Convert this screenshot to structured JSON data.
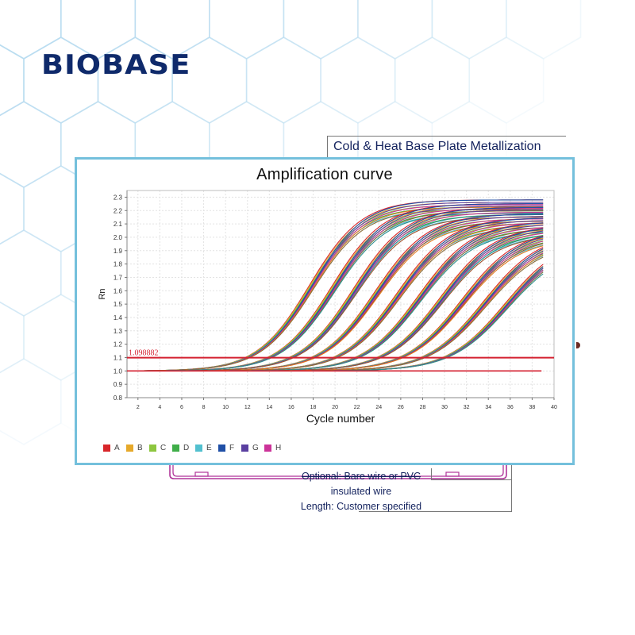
{
  "brand": {
    "name": "BIOBASE",
    "color": "#0f2a6b"
  },
  "background": {
    "hex_pattern_color": "#b9dcf0",
    "callout_top": "Cold & Heat Base Plate Metallization",
    "callout_bottom_lines": [
      "Optional: Bare wire or PVC",
      "insulated wire",
      "Length: Customer specified"
    ],
    "diagram_color": "#b0359a"
  },
  "card": {
    "border_color": "#74c0dc"
  },
  "chart_data": {
    "type": "line",
    "title": "Amplification curve",
    "xlabel": "Cycle number",
    "ylabel": "Rn",
    "xlim": [
      1,
      40
    ],
    "ylim": [
      0.8,
      2.35
    ],
    "x_ticks": [
      2,
      4,
      6,
      8,
      10,
      12,
      14,
      16,
      18,
      20,
      22,
      24,
      26,
      28,
      30,
      32,
      34,
      36,
      38,
      40
    ],
    "y_ticks": [
      0.8,
      0.9,
      1.0,
      1.1,
      1.2,
      1.3,
      1.4,
      1.5,
      1.6,
      1.7,
      1.8,
      1.9,
      2.0,
      2.1,
      2.2,
      2.3
    ],
    "y_tick_labels": [
      "0.8",
      "0.9",
      "1.0",
      "1.1",
      "1.2",
      "1.3",
      "1.4",
      "1.5",
      "1.6",
      "1.7",
      "1.8",
      "1.9",
      "2.0",
      "2.1",
      "2.2",
      "2.3"
    ],
    "grid": true,
    "threshold": {
      "value": 1.098882,
      "label": "1.098882",
      "color": "#d42030"
    },
    "baseline": 1.0,
    "x_range_plotted": [
      1,
      39
    ],
    "legend_position": "bottom-left",
    "legend": [
      {
        "name": "A",
        "color": "#d8262a"
      },
      {
        "name": "B",
        "color": "#e6a92a"
      },
      {
        "name": "C",
        "color": "#8dc63f"
      },
      {
        "name": "D",
        "color": "#3fae49"
      },
      {
        "name": "E",
        "color": "#52c0cf"
      },
      {
        "name": "F",
        "color": "#1f4fa6"
      },
      {
        "name": "G",
        "color": "#5a3fa0"
      },
      {
        "name": "H",
        "color": "#cc3399"
      }
    ],
    "ct_groups_approx": [
      12,
      14,
      16,
      18,
      20,
      22,
      24,
      26,
      28,
      30
    ],
    "plateau_range_approx": [
      1.9,
      2.3
    ],
    "series_description": "8 channels (A-H) x 10 dilution groups; sigmoid amplification curves from baseline Rn 1.0 rising to plateau ~2.0-2.3, crossing the threshold 1.098882 at approx. cycles 12-30."
  }
}
